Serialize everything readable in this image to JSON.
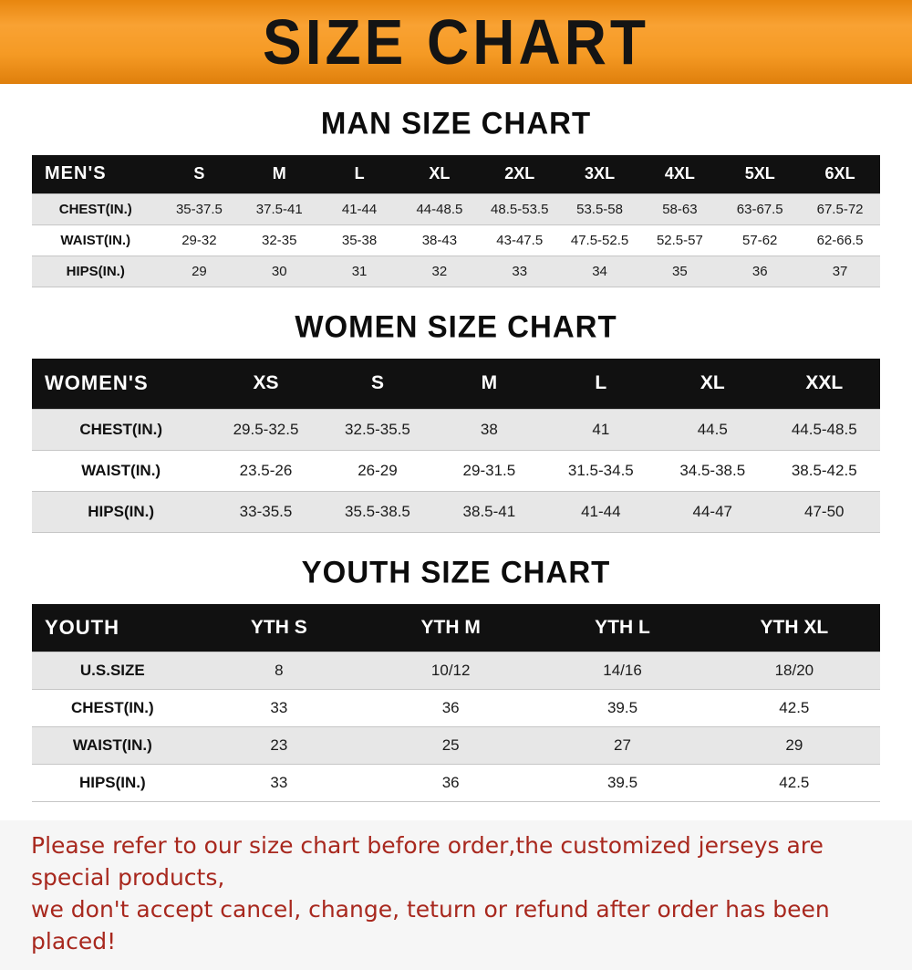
{
  "banner": {
    "title": "SIZE CHART"
  },
  "chart_data": [
    {
      "type": "table",
      "title": "MAN SIZE CHART",
      "columns": [
        "MEN'S",
        "S",
        "M",
        "L",
        "XL",
        "2XL",
        "3XL",
        "4XL",
        "5XL",
        "6XL"
      ],
      "rows": [
        [
          "CHEST(IN.)",
          "35-37.5",
          "37.5-41",
          "41-44",
          "44-48.5",
          "48.5-53.5",
          "53.5-58",
          "58-63",
          "63-67.5",
          "67.5-72"
        ],
        [
          "WAIST(IN.)",
          "29-32",
          "32-35",
          "35-38",
          "38-43",
          "43-47.5",
          "47.5-52.5",
          "52.5-57",
          "57-62",
          "62-66.5"
        ],
        [
          "HIPS(IN.)",
          "29",
          "30",
          "31",
          "32",
          "33",
          "34",
          "35",
          "36",
          "37"
        ]
      ]
    },
    {
      "type": "table",
      "title": "WOMEN SIZE CHART",
      "columns": [
        "WOMEN'S",
        "XS",
        "S",
        "M",
        "L",
        "XL",
        "XXL"
      ],
      "rows": [
        [
          "CHEST(IN.)",
          "29.5-32.5",
          "32.5-35.5",
          "38",
          "41",
          "44.5",
          "44.5-48.5"
        ],
        [
          "WAIST(IN.)",
          "23.5-26",
          "26-29",
          "29-31.5",
          "31.5-34.5",
          "34.5-38.5",
          "38.5-42.5"
        ],
        [
          "HIPS(IN.)",
          "33-35.5",
          "35.5-38.5",
          "38.5-41",
          "41-44",
          "44-47",
          "47-50"
        ]
      ]
    },
    {
      "type": "table",
      "title": "YOUTH SIZE CHART",
      "columns": [
        "YOUTH",
        "YTH S",
        "YTH M",
        "YTH L",
        "YTH XL"
      ],
      "rows": [
        [
          "U.S.SIZE",
          "8",
          "10/12",
          "14/16",
          "18/20"
        ],
        [
          "CHEST(IN.)",
          "33",
          "36",
          "39.5",
          "42.5"
        ],
        [
          "WAIST(IN.)",
          "23",
          "25",
          "27",
          "29"
        ],
        [
          "HIPS(IN.)",
          "33",
          "36",
          "39.5",
          "42.5"
        ]
      ]
    }
  ],
  "colors": {
    "banner_orange": "#f39420",
    "header_black": "#111111",
    "row_gray": "#e7e7e7",
    "disclaimer_red": "#a8281e"
  },
  "disclaimer": {
    "line1": "Please refer to our size chart before order,the customized jerseys are special products,",
    "line2": "we don't accept cancel, change, teturn or refund after order has been placed!"
  }
}
